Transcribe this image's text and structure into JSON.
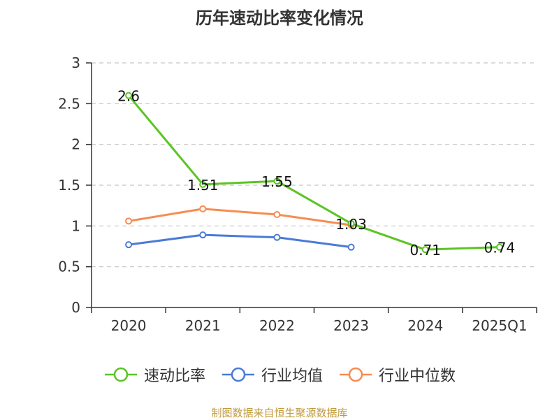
{
  "title": "历年速动比率变化情况",
  "source": "制图数据来自恒生聚源数据库",
  "chart_data": {
    "type": "line",
    "categories": [
      "2020",
      "2021",
      "2022",
      "2023",
      "2024",
      "2025Q1"
    ],
    "ylim": [
      0,
      3
    ],
    "yticks": [
      "0",
      "0.5",
      "1",
      "1.5",
      "2",
      "2.5",
      "3"
    ],
    "grid": true,
    "legend_position": "bottom-center",
    "series": [
      {
        "name": "速动比率",
        "color": "#5cc424",
        "values": [
          2.6,
          1.51,
          1.55,
          1.03,
          0.71,
          0.74
        ],
        "labels": [
          "2.6",
          "1.51",
          "1.55",
          "1.03",
          "0.71",
          "0.74"
        ]
      },
      {
        "name": "行业均值",
        "color": "#4a7bd6",
        "values": [
          0.77,
          0.89,
          0.86,
          0.74,
          null,
          null
        ]
      },
      {
        "name": "行业中位数",
        "color": "#f78c52",
        "values": [
          1.06,
          1.21,
          1.14,
          1.01,
          null,
          null
        ]
      }
    ]
  }
}
